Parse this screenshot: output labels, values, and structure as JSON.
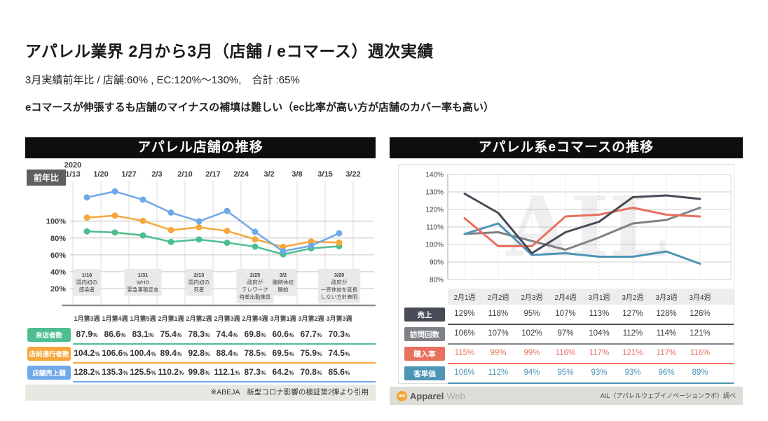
{
  "page": {
    "title": "アパレル業界 2月から3月（店舗 / eコマース）週次実績",
    "subtitle": "3月実績前年比 / 店舗:60% ,  EC:120%〜130%,　合計 :65%",
    "note": "eコマースが伸張するも店舗のマイナスの補填は難しい（ec比率が高い方が店舗のカバー率も高い）"
  },
  "store_panel": {
    "title": "アパレル店舗の推移",
    "badge": "前年比",
    "year_label": "2020",
    "footer": "※ABEJA　新型コロナ影響の検証第2弾より引用"
  },
  "ec_panel": {
    "title": "アパレル系eコマースの推移",
    "watermark": "AIL",
    "logo_mark": "aw",
    "logo_bold": "Apparel",
    "logo_light": "Web",
    "footer_right": "AIL（アパレルウェブイノベーションラボ）調べ"
  },
  "chart_data": [
    {
      "type": "line",
      "title": "アパレル店舗の推移",
      "unit": "%",
      "axis_year": "2020",
      "axis_dates": [
        "1/13",
        "1/20",
        "1/27",
        "2/3",
        "2/10",
        "2/17",
        "2/24",
        "3/2",
        "3/8",
        "3/15",
        "3/22"
      ],
      "categories": [
        "1月第3週",
        "1月第4週",
        "1月第5週",
        "2月第1週",
        "2月第2週",
        "2月第3週",
        "2月第4週",
        "3月第1週",
        "3月第2週",
        "3月第3週"
      ],
      "ylabels": [
        100,
        80,
        60,
        40,
        20
      ],
      "ylim": [
        0,
        148
      ],
      "grid": true,
      "series": [
        {
          "name": "来店者数",
          "color": "#4DBE8F",
          "text_color": "#333333",
          "values": [
            87.9,
            86.6,
            83.1,
            75.4,
            78.3,
            74.4,
            69.8,
            60.6,
            67.7,
            70.3
          ]
        },
        {
          "name": "店前通行者数",
          "color": "#F6A73B",
          "text_color": "#333333",
          "values": [
            104.2,
            106.6,
            100.4,
            89.4,
            92.8,
            88.4,
            78.5,
            69.5,
            75.9,
            74.5
          ]
        },
        {
          "name": "店舗売上額",
          "color": "#6FA9E9",
          "text_color": "#333333",
          "values": [
            128.2,
            135.3,
            125.5,
            110.2,
            99.8,
            112.1,
            87.3,
            64.2,
            70.8,
            85.6
          ]
        }
      ],
      "annotations": [
        {
          "col": 0,
          "lines": [
            "1/16",
            "国内初の",
            "感染者"
          ]
        },
        {
          "col": 2,
          "lines": [
            "1/31",
            "WHO",
            "緊急事態宣言"
          ]
        },
        {
          "col": 4,
          "lines": [
            "2/13",
            "国内初の",
            "死者"
          ]
        },
        {
          "col": 6,
          "lines": [
            "2/25",
            "政府が",
            "テレワーク",
            "時差出勤推奨"
          ]
        },
        {
          "col": 7,
          "lines": [
            "3/2",
            "臨時休校",
            "開始"
          ]
        },
        {
          "col": 9,
          "lines": [
            "3/20",
            "政府が",
            "一斉休校を延長",
            "しない方針表明"
          ]
        }
      ]
    },
    {
      "type": "line",
      "title": "アパレル系eコマースの推移",
      "unit": "%",
      "categories": [
        "2月1週",
        "2月2週",
        "2月3週",
        "2月4週",
        "3月1週",
        "3月2週",
        "3月3週",
        "3月4週"
      ],
      "ylabels": [
        140,
        130,
        120,
        110,
        100,
        90,
        80
      ],
      "ylim": [
        80,
        140
      ],
      "grid": true,
      "series": [
        {
          "name": "売上",
          "color": "#474B55",
          "text_color": "#3a3a3a",
          "values": [
            129,
            118,
            95,
            107,
            113,
            127,
            128,
            126
          ]
        },
        {
          "name": "訪問回数",
          "color": "#7E8186",
          "text_color": "#3a3a3a",
          "values": [
            106,
            107,
            102,
            97,
            104,
            112,
            114,
            121
          ]
        },
        {
          "name": "購入率",
          "color": "#E8705F",
          "text_color": "#E8705F",
          "values": [
            115,
            99,
            99,
            116,
            117,
            121,
            117,
            116
          ]
        },
        {
          "name": "客単価",
          "color": "#4D95B5",
          "text_color": "#4D95B5",
          "values": [
            106,
            112,
            94,
            95,
            93,
            93,
            96,
            89
          ]
        }
      ]
    }
  ]
}
